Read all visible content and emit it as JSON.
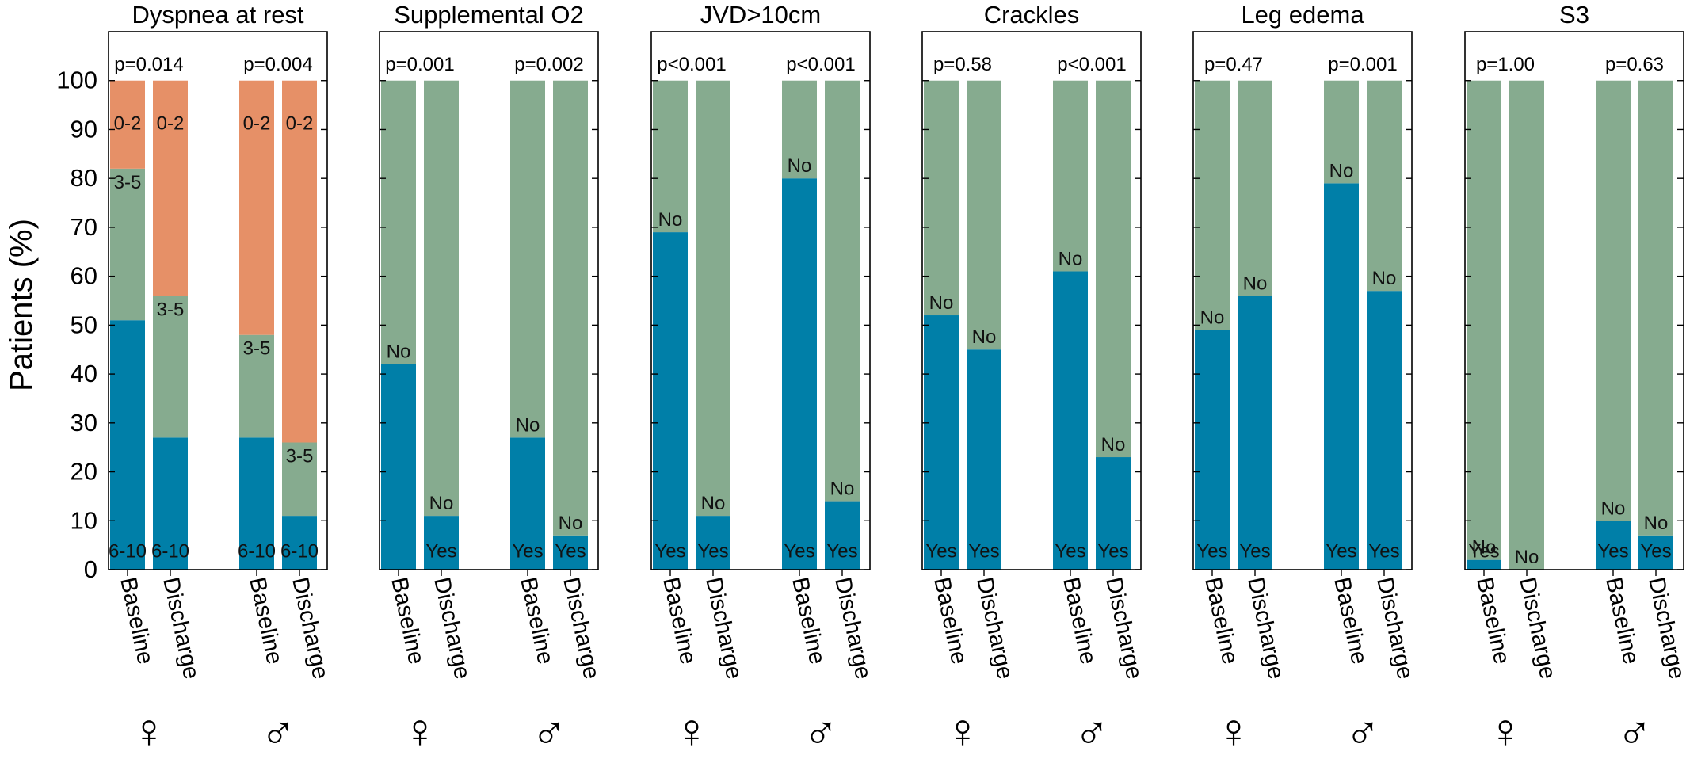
{
  "figure": {
    "ylabel": "Patients (%)",
    "yticks": [
      0,
      10,
      20,
      30,
      40,
      50,
      60,
      70,
      80,
      90,
      100
    ],
    "ylim": [
      0,
      110
    ],
    "xlabels": [
      "Baseline",
      "Discharge",
      "Baseline",
      "Discharge"
    ],
    "group_symbols": [
      "♀",
      "♂"
    ],
    "colors": {
      "bottom": "#007fa8",
      "middle": "#86ab8f",
      "top": "#e69067",
      "frame": "#000000"
    }
  },
  "chart_data": [
    {
      "type": "bar",
      "stacked": true,
      "title": "Dyspnea at rest",
      "categories": [
        "Baseline",
        "Discharge",
        "Baseline",
        "Discharge"
      ],
      "groups": [
        "♀",
        "♀",
        "♂",
        "♂"
      ],
      "pvalues": [
        "p=0.014",
        "p=0.004"
      ],
      "series": [
        {
          "name": "6-10",
          "values": [
            51,
            27,
            27,
            11
          ],
          "labels": [
            "6-10",
            "6-10",
            "6-10",
            "6-10"
          ]
        },
        {
          "name": "3-5",
          "values": [
            31,
            29,
            21,
            15
          ],
          "labels": [
            "3-5",
            "3-5",
            "3-5",
            "3-5"
          ]
        },
        {
          "name": "0-2",
          "values": [
            18,
            44,
            52,
            74
          ],
          "labels": [
            "0-2",
            "0-2",
            "0-2",
            "0-2"
          ]
        }
      ]
    },
    {
      "type": "bar",
      "stacked": true,
      "title": "Supplemental O2",
      "categories": [
        "Baseline",
        "Discharge",
        "Baseline",
        "Discharge"
      ],
      "groups": [
        "♀",
        "♀",
        "♂",
        "♂"
      ],
      "pvalues": [
        "p=0.001",
        "p=0.002"
      ],
      "series": [
        {
          "name": "Yes",
          "values": [
            42,
            11,
            27,
            7
          ],
          "labels": [
            "",
            "Yes",
            "Yes",
            "Yes"
          ]
        },
        {
          "name": "No",
          "values": [
            58,
            89,
            73,
            93
          ],
          "labels": [
            "No",
            "No",
            "No",
            "No"
          ]
        }
      ]
    },
    {
      "type": "bar",
      "stacked": true,
      "title": "JVD>10cm",
      "categories": [
        "Baseline",
        "Discharge",
        "Baseline",
        "Discharge"
      ],
      "groups": [
        "♀",
        "♀",
        "♂",
        "♂"
      ],
      "pvalues": [
        "p<0.001",
        "p<0.001"
      ],
      "series": [
        {
          "name": "Yes",
          "values": [
            69,
            11,
            80,
            14
          ],
          "labels": [
            "Yes",
            "Yes",
            "Yes",
            "Yes"
          ]
        },
        {
          "name": "No",
          "values": [
            31,
            89,
            20,
            86
          ],
          "labels": [
            "No",
            "No",
            "No",
            "No"
          ]
        }
      ]
    },
    {
      "type": "bar",
      "stacked": true,
      "title": "Crackles",
      "categories": [
        "Baseline",
        "Discharge",
        "Baseline",
        "Discharge"
      ],
      "groups": [
        "♀",
        "♀",
        "♂",
        "♂"
      ],
      "pvalues": [
        "p=0.58",
        "p<0.001"
      ],
      "series": [
        {
          "name": "Yes",
          "values": [
            52,
            45,
            61,
            23
          ],
          "labels": [
            "Yes",
            "Yes",
            "Yes",
            "Yes"
          ]
        },
        {
          "name": "No",
          "values": [
            48,
            55,
            39,
            77
          ],
          "labels": [
            "No",
            "No",
            "No",
            "No"
          ]
        }
      ]
    },
    {
      "type": "bar",
      "stacked": true,
      "title": "Leg edema",
      "categories": [
        "Baseline",
        "Discharge",
        "Baseline",
        "Discharge"
      ],
      "groups": [
        "♀",
        "♀",
        "♂",
        "♂"
      ],
      "pvalues": [
        "p=0.47",
        "p=0.001"
      ],
      "series": [
        {
          "name": "Yes",
          "values": [
            49,
            56,
            79,
            57
          ],
          "labels": [
            "Yes",
            "Yes",
            "Yes",
            "Yes"
          ]
        },
        {
          "name": "No",
          "values": [
            51,
            44,
            21,
            43
          ],
          "labels": [
            "No",
            "No",
            "No",
            "No"
          ]
        }
      ]
    },
    {
      "type": "bar",
      "stacked": true,
      "title": "S3",
      "categories": [
        "Baseline",
        "Discharge",
        "Baseline",
        "Discharge"
      ],
      "groups": [
        "♀",
        "♀",
        "♂",
        "♂"
      ],
      "pvalues": [
        "p=1.00",
        "p=0.63"
      ],
      "series": [
        {
          "name": "Yes",
          "values": [
            2,
            0,
            10,
            7
          ],
          "labels": [
            "Yes",
            "",
            "Yes",
            "Yes"
          ]
        },
        {
          "name": "No",
          "values": [
            98,
            100,
            90,
            93
          ],
          "labels": [
            "No",
            "No",
            "No",
            "No"
          ]
        }
      ]
    }
  ]
}
